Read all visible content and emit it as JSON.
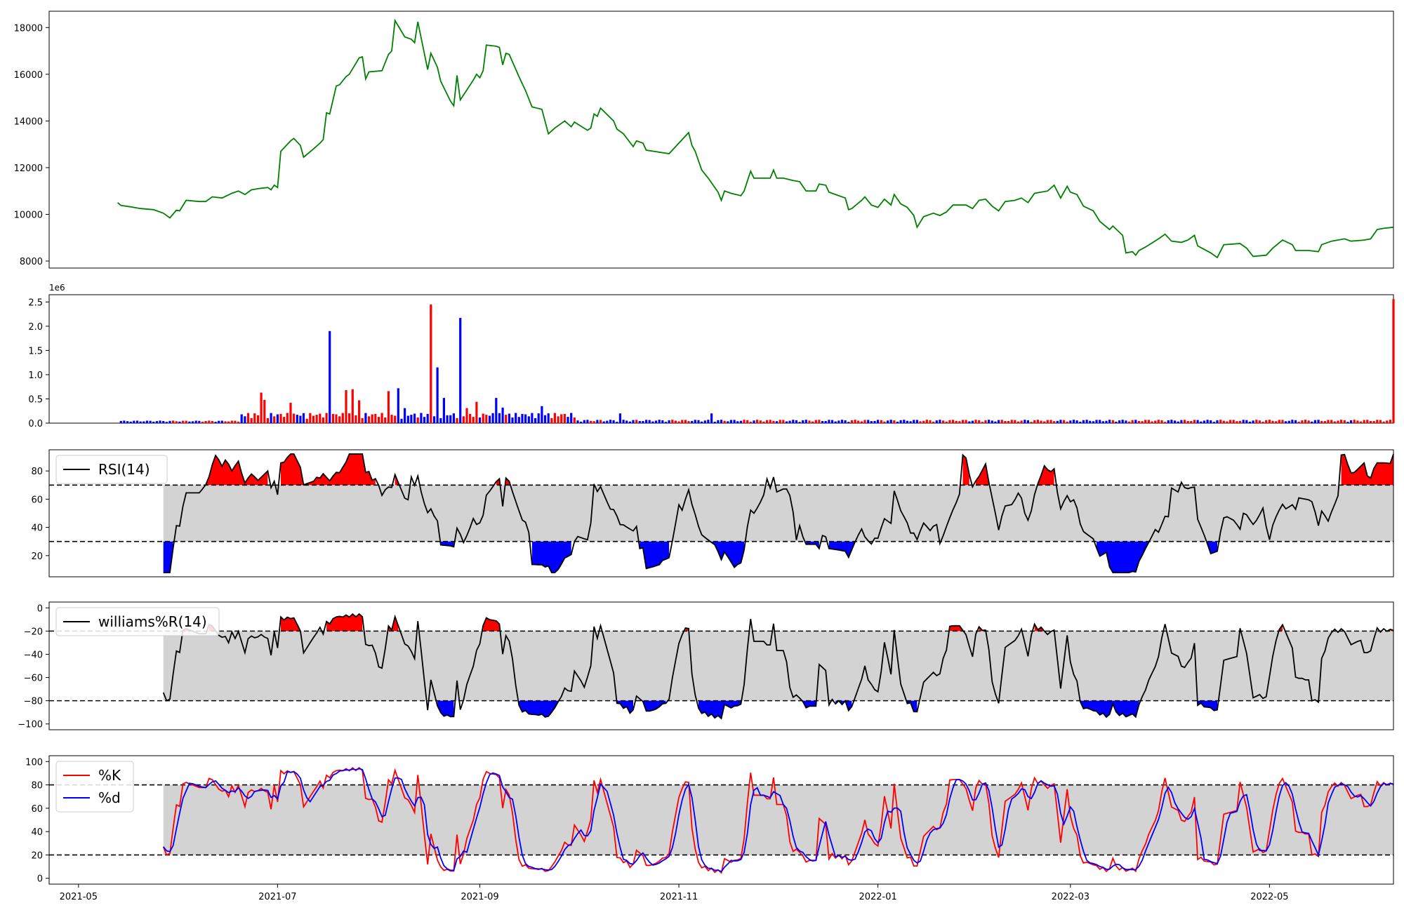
{
  "figure": {
    "background": "#ffffff"
  },
  "chart_data": [
    {
      "id": "price",
      "type": "line",
      "xdomain": [
        "2021-04-22",
        "2022-06-08"
      ],
      "ylim": [
        7700,
        18700
      ],
      "yticks": [
        8000,
        10000,
        12000,
        14000,
        16000,
        18000
      ],
      "ytick_labels": [
        "8000",
        "10000",
        "12000",
        "14000",
        "16000",
        "18000"
      ],
      "color": "#008000",
      "series": [
        {
          "points": [
            [
              "2021-05-13",
              10500
            ],
            [
              "2021-05-14",
              10380
            ],
            [
              "2021-05-17",
              10320
            ],
            [
              "2021-05-20",
              10250
            ],
            [
              "2021-05-24",
              10200
            ],
            [
              "2021-05-27",
              10050
            ],
            [
              "2021-05-29",
              9850
            ],
            [
              "2021-05-31",
              10180
            ],
            [
              "2021-06-01",
              10150
            ],
            [
              "2021-06-03",
              10600
            ],
            [
              "2021-06-07",
              10550
            ],
            [
              "2021-06-09",
              10550
            ],
            [
              "2021-06-11",
              10750
            ],
            [
              "2021-06-14",
              10700
            ],
            [
              "2021-06-17",
              10900
            ],
            [
              "2021-06-19",
              11000
            ],
            [
              "2021-06-21",
              10850
            ],
            [
              "2021-06-23",
              11050
            ],
            [
              "2021-06-25",
              11100
            ],
            [
              "2021-06-28",
              11150
            ],
            [
              "2021-06-29",
              11050
            ],
            [
              "2021-06-30",
              11250
            ],
            [
              "2021-07-01",
              11150
            ],
            [
              "2021-07-02",
              12700
            ],
            [
              "2021-07-05",
              13150
            ],
            [
              "2021-07-06",
              13250
            ],
            [
              "2021-07-08",
              12950
            ],
            [
              "2021-07-09",
              12450
            ],
            [
              "2021-07-12",
              12800
            ],
            [
              "2021-07-14",
              13050
            ],
            [
              "2021-07-15",
              13200
            ],
            [
              "2021-07-16",
              14350
            ],
            [
              "2021-07-17",
              14300
            ],
            [
              "2021-07-19",
              15500
            ],
            [
              "2021-07-20",
              15550
            ],
            [
              "2021-07-22",
              15900
            ],
            [
              "2021-07-23",
              16000
            ],
            [
              "2021-07-26",
              16700
            ],
            [
              "2021-07-27",
              16750
            ],
            [
              "2021-07-28",
              15800
            ],
            [
              "2021-07-29",
              16100
            ],
            [
              "2021-08-02",
              16150
            ],
            [
              "2021-08-04",
              16850
            ],
            [
              "2021-08-05",
              17000
            ],
            [
              "2021-08-06",
              18300
            ],
            [
              "2021-08-09",
              17600
            ],
            [
              "2021-08-11",
              17500
            ],
            [
              "2021-08-12",
              17350
            ],
            [
              "2021-08-13",
              18250
            ],
            [
              "2021-08-16",
              16200
            ],
            [
              "2021-08-17",
              16900
            ],
            [
              "2021-08-19",
              16300
            ],
            [
              "2021-08-20",
              15700
            ],
            [
              "2021-08-23",
              14850
            ],
            [
              "2021-08-24",
              14650
            ],
            [
              "2021-08-25",
              15950
            ],
            [
              "2021-08-26",
              14900
            ],
            [
              "2021-08-30",
              15750
            ],
            [
              "2021-08-31",
              16000
            ],
            [
              "2021-09-01",
              15850
            ],
            [
              "2021-09-02",
              16150
            ],
            [
              "2021-09-03",
              17250
            ],
            [
              "2021-09-06",
              17200
            ],
            [
              "2021-09-07",
              17150
            ],
            [
              "2021-09-08",
              16400
            ],
            [
              "2021-09-09",
              16900
            ],
            [
              "2021-09-10",
              16850
            ],
            [
              "2021-09-13",
              15900
            ],
            [
              "2021-09-15",
              15300
            ],
            [
              "2021-09-17",
              14600
            ],
            [
              "2021-09-20",
              14500
            ],
            [
              "2021-09-22",
              13450
            ],
            [
              "2021-09-24",
              13700
            ],
            [
              "2021-09-27",
              14000
            ],
            [
              "2021-09-29",
              13750
            ],
            [
              "2021-09-30",
              13950
            ],
            [
              "2021-10-04",
              13600
            ],
            [
              "2021-10-05",
              13700
            ],
            [
              "2021-10-06",
              14300
            ],
            [
              "2021-10-07",
              14200
            ],
            [
              "2021-10-08",
              14550
            ],
            [
              "2021-10-12",
              14000
            ],
            [
              "2021-10-13",
              13650
            ],
            [
              "2021-10-15",
              13450
            ],
            [
              "2021-10-18",
              12900
            ],
            [
              "2021-10-19",
              13150
            ],
            [
              "2021-10-21",
              13050
            ],
            [
              "2021-10-22",
              12750
            ],
            [
              "2021-10-29",
              12600
            ],
            [
              "2021-11-04",
              13500
            ],
            [
              "2021-11-05",
              12950
            ],
            [
              "2021-11-06",
              12700
            ],
            [
              "2021-11-08",
              11900
            ],
            [
              "2021-11-10",
              11550
            ],
            [
              "2021-11-13",
              10950
            ],
            [
              "2021-11-14",
              10600
            ],
            [
              "2021-11-15",
              11000
            ],
            [
              "2021-11-17",
              10900
            ],
            [
              "2021-11-20",
              10800
            ],
            [
              "2021-11-21",
              11000
            ],
            [
              "2021-11-23",
              11850
            ],
            [
              "2021-11-24",
              11550
            ],
            [
              "2021-11-29",
              11550
            ],
            [
              "2021-11-30",
              11900
            ],
            [
              "2021-12-01",
              11550
            ],
            [
              "2021-12-03",
              11550
            ],
            [
              "2021-12-06",
              11450
            ],
            [
              "2021-12-08",
              11400
            ],
            [
              "2021-12-10",
              11000
            ],
            [
              "2021-12-13",
              11000
            ],
            [
              "2021-12-14",
              11300
            ],
            [
              "2021-12-16",
              11250
            ],
            [
              "2021-12-17",
              10950
            ],
            [
              "2021-12-22",
              10700
            ],
            [
              "2021-12-23",
              10200
            ],
            [
              "2021-12-24",
              10250
            ],
            [
              "2021-12-27",
              10600
            ],
            [
              "2021-12-28",
              10750
            ],
            [
              "2021-12-30",
              10400
            ],
            [
              "2022-01-01",
              10300
            ],
            [
              "2022-01-03",
              10650
            ],
            [
              "2022-01-05",
              10400
            ],
            [
              "2022-01-06",
              10850
            ],
            [
              "2022-01-08",
              10450
            ],
            [
              "2022-01-10",
              10300
            ],
            [
              "2022-01-12",
              9950
            ],
            [
              "2022-01-13",
              9450
            ],
            [
              "2022-01-15",
              9900
            ],
            [
              "2022-01-18",
              10050
            ],
            [
              "2022-01-20",
              9950
            ],
            [
              "2022-01-22",
              10100
            ],
            [
              "2022-01-24",
              10400
            ],
            [
              "2022-01-28",
              10400
            ],
            [
              "2022-01-30",
              10250
            ],
            [
              "2022-02-01",
              10600
            ],
            [
              "2022-02-03",
              10650
            ],
            [
              "2022-02-05",
              10350
            ],
            [
              "2022-02-07",
              10150
            ],
            [
              "2022-02-09",
              10550
            ],
            [
              "2022-02-12",
              10600
            ],
            [
              "2022-02-14",
              10700
            ],
            [
              "2022-02-16",
              10500
            ],
            [
              "2022-02-18",
              10900
            ],
            [
              "2022-02-22",
              11000
            ],
            [
              "2022-02-24",
              11250
            ],
            [
              "2022-02-26",
              10700
            ],
            [
              "2022-02-28",
              11200
            ],
            [
              "2022-03-01",
              10950
            ],
            [
              "2022-03-03",
              10850
            ],
            [
              "2022-03-05",
              10350
            ],
            [
              "2022-03-08",
              10150
            ],
            [
              "2022-03-10",
              9700
            ],
            [
              "2022-03-13",
              9350
            ],
            [
              "2022-03-14",
              9500
            ],
            [
              "2022-03-17",
              9100
            ],
            [
              "2022-03-18",
              8350
            ],
            [
              "2022-03-20",
              8400
            ],
            [
              "2022-03-21",
              8250
            ],
            [
              "2022-03-22",
              8450
            ],
            [
              "2022-03-24",
              8600
            ],
            [
              "2022-03-28",
              8950
            ],
            [
              "2022-03-30",
              9150
            ],
            [
              "2022-04-01",
              8850
            ],
            [
              "2022-04-04",
              8800
            ],
            [
              "2022-04-06",
              8900
            ],
            [
              "2022-04-08",
              9100
            ],
            [
              "2022-04-09",
              8650
            ],
            [
              "2022-04-13",
              8350
            ],
            [
              "2022-04-15",
              8150
            ],
            [
              "2022-04-17",
              8700
            ],
            [
              "2022-04-22",
              8750
            ],
            [
              "2022-04-24",
              8550
            ],
            [
              "2022-04-26",
              8200
            ],
            [
              "2022-04-30",
              8250
            ],
            [
              "2022-05-02",
              8550
            ],
            [
              "2022-05-05",
              8900
            ],
            [
              "2022-05-08",
              8700
            ],
            [
              "2022-05-09",
              8450
            ],
            [
              "2022-05-13",
              8450
            ],
            [
              "2022-05-16",
              8400
            ],
            [
              "2022-05-17",
              8700
            ],
            [
              "2022-05-20",
              8850
            ],
            [
              "2022-05-24",
              8950
            ],
            [
              "2022-05-26",
              8850
            ],
            [
              "2022-05-30",
              8900
            ],
            [
              "2022-06-01",
              8950
            ],
            [
              "2022-06-03",
              9350
            ],
            [
              "2022-06-05",
              9400
            ],
            [
              "2022-06-08",
              9450
            ]
          ]
        }
      ]
    },
    {
      "id": "volume",
      "type": "bar",
      "ylim": [
        0,
        2650000
      ],
      "offset_label": "1e6",
      "yticks": [
        0,
        500000,
        1000000,
        1500000,
        2000000,
        2500000
      ],
      "ytick_labels": [
        "0.0",
        "0.5",
        "1.0",
        "1.5",
        "2.0",
        "2.5"
      ],
      "up_color": "#ff0000",
      "down_color": "#0000ff"
    },
    {
      "id": "rsi",
      "type": "line",
      "legend": [
        "RSI(14)"
      ],
      "legend_loc": "upper left",
      "ylim": [
        5,
        95
      ],
      "yticks": [
        20,
        40,
        60,
        80
      ],
      "ytick_labels": [
        "20",
        "40",
        "60",
        "80"
      ],
      "thresholds": [
        30,
        70
      ],
      "line_color": "#000000",
      "band_color": "#d3d3d3",
      "over_color": "#ff0000",
      "under_color": "#0000ff"
    },
    {
      "id": "williams",
      "type": "line",
      "legend": [
        "williams%R(14)"
      ],
      "legend_loc": "upper left",
      "ylim": [
        -105,
        5
      ],
      "yticks": [
        -100,
        -80,
        -60,
        -40,
        -20,
        0
      ],
      "ytick_labels": [
        "−100",
        "−80",
        "−60",
        "−40",
        "−20",
        "0"
      ],
      "thresholds": [
        -80,
        -20
      ],
      "line_color": "#000000",
      "band_color": "#d3d3d3",
      "over_color": "#ff0000",
      "under_color": "#0000ff"
    },
    {
      "id": "stoch",
      "type": "line",
      "legend": [
        "%K",
        "%d"
      ],
      "legend_loc": "upper left",
      "ylim": [
        -5,
        105
      ],
      "yticks": [
        0,
        20,
        40,
        60,
        80,
        100
      ],
      "ytick_labels": [
        "0",
        "20",
        "40",
        "60",
        "80",
        "100"
      ],
      "thresholds": [
        20,
        80
      ],
      "band_color": "#d3d3d3",
      "series_colors": [
        "#ff0000",
        "#0000ff"
      ],
      "xticks": [
        "2021-05-01",
        "2021-07-01",
        "2021-09-01",
        "2021-11-01",
        "2022-01-01",
        "2022-03-01",
        "2022-05-01"
      ],
      "xtick_labels": [
        "2021-05",
        "2021-07",
        "2021-09",
        "2021-11",
        "2022-01",
        "2022-03",
        "2022-05"
      ]
    }
  ]
}
